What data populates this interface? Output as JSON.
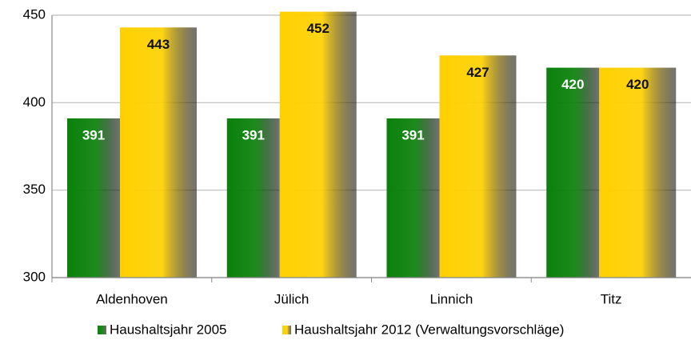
{
  "chart_data": {
    "type": "bar",
    "categories": [
      "Aldenhoven",
      "Jülich",
      "Linnich",
      "Titz"
    ],
    "series": [
      {
        "name": "Haushaltsjahr 2005",
        "color": "#0a800a",
        "values": [
          391,
          391,
          391,
          420
        ]
      },
      {
        "name": "Haushaltsjahr 2012 (Verwaltungsvorschläge)",
        "color": "#ffd000",
        "values": [
          443,
          452,
          427,
          420
        ]
      }
    ],
    "ylim": [
      300,
      450
    ],
    "yticks": [
      300,
      350,
      400,
      450
    ],
    "grid": true,
    "legend": "bottom"
  }
}
